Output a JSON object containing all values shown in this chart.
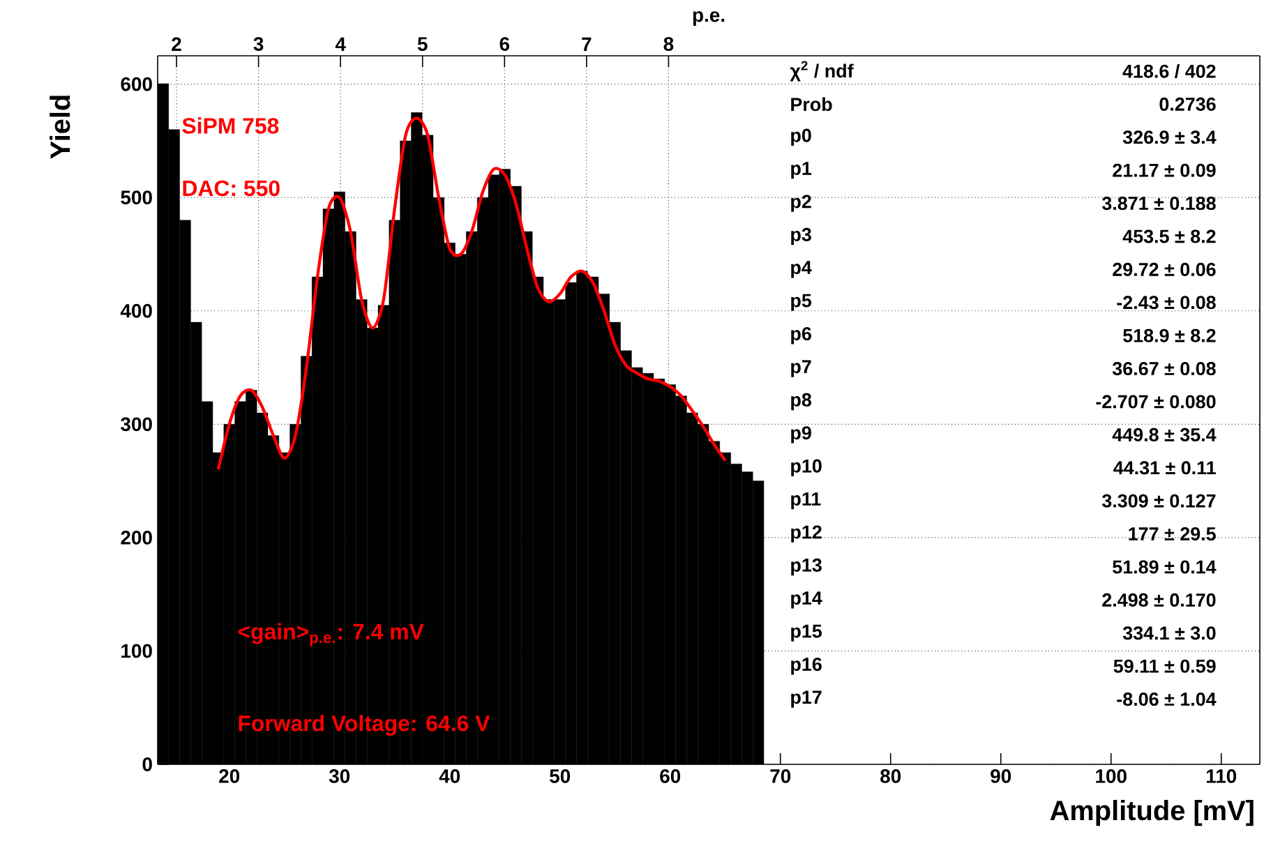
{
  "chart_data": {
    "type": "histogram",
    "xlabel": "Amplitude [mV]",
    "ylabel": "Yield",
    "x2label": "p.e.",
    "xlim": [
      13.5,
      113.5
    ],
    "xticks": [
      20,
      30,
      40,
      50,
      60,
      70,
      80,
      90,
      100,
      110
    ],
    "ylim": [
      0,
      625
    ],
    "yticks": [
      0,
      100,
      200,
      300,
      400,
      500,
      600
    ],
    "x2lim": [
      1.77,
      15.21
    ],
    "x2ticks": [
      2,
      3,
      4,
      5,
      6,
      7,
      8
    ],
    "grid": true,
    "series": [
      {
        "color": "#000000",
        "bins": [
          13.5,
          14.5,
          15.5,
          16.5,
          17.5,
          18.5,
          19.5,
          20.5,
          21.5,
          22.5,
          23.5,
          24.5,
          25.5,
          26.5,
          27.5,
          28.5,
          29.5,
          30.5,
          31.5,
          32.5,
          33.5,
          34.5,
          35.5,
          36.5,
          37.5,
          38.5,
          39.5,
          40.5,
          41.5,
          42.5,
          43.5,
          44.5,
          45.5,
          46.5,
          47.5,
          48.5,
          49.5,
          50.5,
          51.5,
          52.5,
          53.5,
          54.5,
          55.5,
          56.5,
          57.5,
          58.5,
          59.5,
          60.5,
          61.5,
          62.5,
          63.5,
          64.5,
          65.5,
          66.5,
          67.5,
          68.5
        ],
        "values": [
          600,
          560,
          480,
          390,
          320,
          275,
          300,
          320,
          330,
          310,
          290,
          275,
          300,
          360,
          430,
          490,
          505,
          470,
          410,
          385,
          405,
          480,
          550,
          575,
          555,
          500,
          460,
          450,
          470,
          500,
          520,
          525,
          510,
          470,
          430,
          410,
          410,
          425,
          435,
          430,
          415,
          390,
          365,
          350,
          345,
          340,
          335,
          325,
          310,
          300,
          285,
          275,
          265,
          258,
          250
        ]
      },
      {
        "type": "line",
        "color": "#ff0000",
        "x": [
          19,
          20,
          21,
          22,
          23,
          24,
          25,
          26,
          27,
          28,
          29,
          30,
          31,
          32,
          33,
          34,
          35,
          36,
          37,
          38,
          39,
          40,
          41,
          42,
          43,
          44,
          45,
          46,
          47,
          48,
          49,
          50,
          51,
          52,
          53,
          54,
          55,
          56,
          57,
          58,
          59,
          60,
          61,
          62,
          63,
          64,
          65
        ],
        "values": [
          260,
          300,
          325,
          330,
          315,
          290,
          270,
          290,
          350,
          430,
          490,
          500,
          470,
          410,
          385,
          410,
          490,
          555,
          570,
          555,
          500,
          455,
          450,
          470,
          505,
          525,
          520,
          495,
          455,
          420,
          408,
          415,
          430,
          435,
          425,
          400,
          370,
          352,
          345,
          340,
          338,
          333,
          325,
          312,
          298,
          282,
          268
        ]
      }
    ],
    "annotations": [
      "SiPM 758",
      "DAC: 550",
      "<gain>$_{p.e.}$: 7.4 mV",
      "Forward Voltage: 64.6 V",
      "χ$^{2}$ / ndf",
      "418.6 / 402",
      "Prob",
      "0.2736",
      "p0",
      "326.9 ± 3.4",
      "p1",
      "21.17 ± 0.09",
      "p2",
      "3.871 ± 0.188",
      "p3",
      "453.5 ± 8.2",
      "p4",
      "29.72 ± 0.06",
      "p5",
      "-2.43 ± 0.08",
      "p6",
      "518.9 ± 8.2",
      "p7",
      "36.67 ± 0.08",
      "p8",
      "-2.707 ± 0.080",
      "p9",
      "449.8 ± 35.4",
      "p10",
      "44.31 ± 0.11",
      "p11",
      "3.309 ± 0.127",
      "p12",
      "177 ± 29.5",
      "p13",
      "51.89 ± 0.14",
      "p14",
      "2.498 ± 0.170",
      "p15",
      "334.1 ± 3.0",
      "p16",
      "59.11 ± 0.59",
      "p17",
      "-8.06 ± 1.04"
    ]
  }
}
